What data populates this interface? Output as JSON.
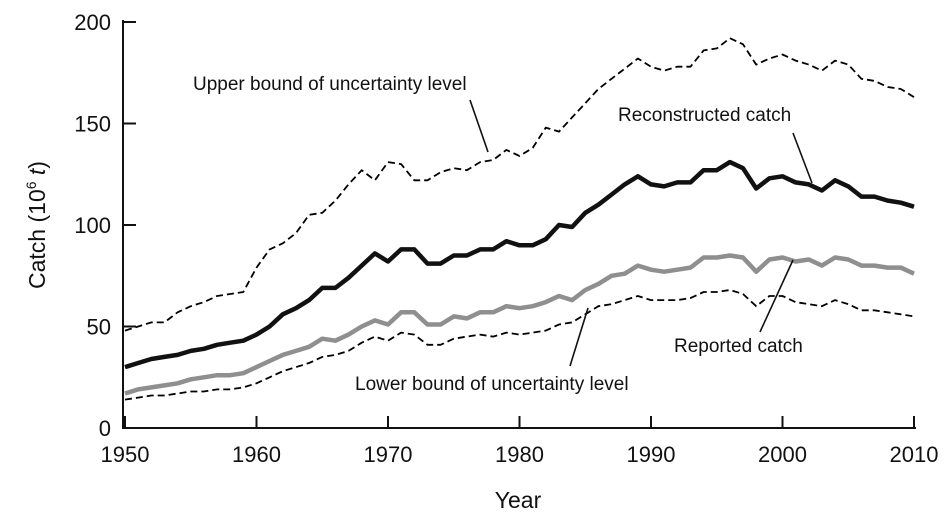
{
  "chart_data": {
    "type": "line",
    "xlabel": "Year",
    "ylabel": "Catch (10",
    "ylabel_sup": "6",
    "ylabel_unit": "t",
    "ylabel_close": ")",
    "xlim": [
      1950,
      2010
    ],
    "ylim": [
      0,
      200
    ],
    "xticks": [
      1950,
      1960,
      1970,
      1980,
      1990,
      2000,
      2010
    ],
    "yticks": [
      0,
      50,
      100,
      150,
      200
    ],
    "grid": false,
    "x_start": 1950,
    "series": [
      {
        "name": "Upper bound of uncertainty level",
        "style": "dashed",
        "color": "#000000",
        "values": [
          48,
          50,
          52,
          52,
          57,
          60,
          62,
          65,
          66,
          67,
          79,
          88,
          91,
          96,
          105,
          106,
          112,
          120,
          127,
          122,
          131,
          130,
          122,
          122,
          126,
          128,
          127,
          131,
          132,
          137,
          134,
          138,
          148,
          146,
          153,
          160,
          167,
          172,
          177,
          182,
          178,
          176,
          178,
          178,
          186,
          187,
          192,
          189,
          179,
          182,
          184,
          181,
          179,
          176,
          181,
          179,
          172,
          171,
          168,
          167,
          163
        ]
      },
      {
        "name": "Reconstructed catch",
        "style": "solid",
        "color": "#111111",
        "values": [
          30,
          32,
          34,
          35,
          36,
          38,
          39,
          41,
          42,
          43,
          46,
          50,
          56,
          59,
          63,
          69,
          69,
          74,
          80,
          86,
          82,
          88,
          88,
          81,
          81,
          85,
          85,
          88,
          88,
          92,
          90,
          90,
          93,
          100,
          99,
          106,
          110,
          115,
          120,
          124,
          120,
          119,
          121,
          121,
          127,
          127,
          131,
          128,
          118,
          123,
          124,
          121,
          120,
          117,
          122,
          119,
          114,
          114,
          112,
          111,
          109
        ]
      },
      {
        "name": "Reported catch",
        "style": "solid",
        "color": "#8f8f8f",
        "values": [
          17,
          19,
          20,
          21,
          22,
          24,
          25,
          26,
          26,
          27,
          30,
          33,
          36,
          38,
          40,
          44,
          43,
          46,
          50,
          53,
          51,
          57,
          57,
          51,
          51,
          55,
          54,
          57,
          57,
          60,
          59,
          60,
          62,
          65,
          63,
          68,
          71,
          75,
          76,
          80,
          78,
          77,
          78,
          79,
          84,
          84,
          85,
          84,
          77,
          83,
          84,
          82,
          83,
          80,
          84,
          83,
          80,
          80,
          79,
          79,
          76
        ]
      },
      {
        "name": "Lower bound of uncertainty level",
        "style": "dashed",
        "color": "#000000",
        "values": [
          14,
          15,
          16,
          16,
          17,
          18,
          18,
          19,
          19,
          20,
          22,
          25,
          28,
          30,
          32,
          35,
          36,
          38,
          42,
          45,
          43,
          47,
          46,
          41,
          41,
          44,
          45,
          46,
          45,
          47,
          46,
          47,
          48,
          51,
          52,
          56,
          60,
          61,
          63,
          65,
          63,
          63,
          63,
          64,
          67,
          67,
          68,
          66,
          60,
          65,
          65,
          62,
          61,
          60,
          63,
          61,
          58,
          58,
          57,
          56,
          55
        ]
      }
    ]
  }
}
